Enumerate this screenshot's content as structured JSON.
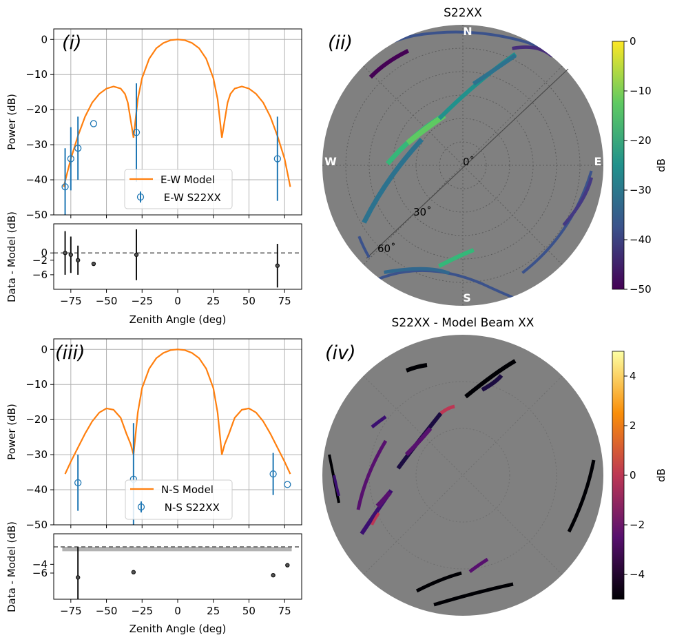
{
  "panels": {
    "i": {
      "tag": "(i)"
    },
    "ii": {
      "tag": "(ii)",
      "title": "S22XX"
    },
    "iii": {
      "tag": "(iii)"
    },
    "iv": {
      "tag": "(iv)",
      "title": "S22XX - Model Beam XX"
    }
  },
  "chart_data": [
    {
      "id": "ew-power",
      "type": "line",
      "xlabel": "",
      "ylabel": "Power (dB)",
      "xlim": [
        -87,
        87
      ],
      "ylim": [
        -50,
        3
      ],
      "yticks": [
        0,
        -10,
        -20,
        -30,
        -40,
        -50
      ],
      "xticks": [
        -75,
        -50,
        -25,
        0,
        25,
        50,
        75
      ],
      "grid": true,
      "legend": "lower-center",
      "model_series": {
        "name": "E-W Model",
        "color": "#ff7f0e",
        "x": [
          -80,
          -75,
          -70,
          -65,
          -60,
          -55,
          -50,
          -45,
          -40,
          -37,
          -35,
          -33,
          -31,
          -28,
          -25,
          -20,
          -15,
          -10,
          -5,
          0,
          5,
          10,
          15,
          20,
          25,
          28,
          31,
          33,
          35,
          37,
          40,
          45,
          50,
          55,
          60,
          65,
          70,
          75,
          79
        ],
        "y": [
          -42,
          -34,
          -27.5,
          -22,
          -18,
          -15.5,
          -14,
          -13.4,
          -14,
          -15.5,
          -18,
          -23,
          -28,
          -17,
          -11,
          -5.5,
          -2.5,
          -1,
          -0.2,
          0,
          -0.2,
          -1,
          -2.5,
          -5.5,
          -11,
          -17,
          -28,
          -23,
          -18,
          -15.5,
          -14,
          -13.4,
          -14,
          -15.5,
          -18,
          -22,
          -27.5,
          -34,
          -42
        ]
      },
      "data_series": {
        "name": " E-W S22XX",
        "color": "#1f77b4",
        "points": [
          {
            "x": -79,
            "y": -42,
            "err": 11
          },
          {
            "x": -75,
            "y": -34,
            "err": 9
          },
          {
            "x": -70,
            "y": -31,
            "err": 9
          },
          {
            "x": -59,
            "y": -24,
            "err": 0
          },
          {
            "x": -29,
            "y": -26.5,
            "err": 14
          },
          {
            "x": 70,
            "y": -34,
            "err": 12
          }
        ]
      }
    },
    {
      "id": "ew-residual",
      "type": "scatter",
      "xlabel": "Zenith Angle (deg)",
      "ylabel": "Data - Model (dB)",
      "xlim": [
        -87,
        87
      ],
      "ylim": [
        -10,
        8
      ],
      "yticks": [
        0,
        -2,
        -6
      ],
      "xticks": [
        -75,
        -50,
        -25,
        0,
        25,
        50,
        75
      ],
      "grid": false,
      "zero_line": 0,
      "points": [
        {
          "x": -79,
          "y": 0,
          "err": 6
        },
        {
          "x": -75,
          "y": -0.5,
          "err": 5
        },
        {
          "x": -70,
          "y": -2,
          "err": 4
        },
        {
          "x": -59,
          "y": -3,
          "err": 0
        },
        {
          "x": -29,
          "y": -0.5,
          "err": 7
        },
        {
          "x": 70,
          "y": -3.5,
          "err": 6
        }
      ]
    },
    {
      "id": "ns-power",
      "type": "line",
      "xlabel": "",
      "ylabel": "Power (dB)",
      "xlim": [
        -87,
        87
      ],
      "ylim": [
        -50,
        3
      ],
      "yticks": [
        0,
        -10,
        -20,
        -30,
        -40,
        -50
      ],
      "xticks": [
        -75,
        -50,
        -25,
        0,
        25,
        50,
        75
      ],
      "grid": true,
      "legend": "lower-center",
      "model_series": {
        "name": "N-S Model",
        "color": "#ff7f0e",
        "x": [
          -79,
          -75,
          -70,
          -65,
          -60,
          -55,
          -50,
          -45,
          -40,
          -36,
          -33,
          -31,
          -28,
          -25,
          -20,
          -15,
          -10,
          -5,
          0,
          5,
          10,
          15,
          20,
          25,
          28,
          31,
          33,
          36,
          40,
          45,
          50,
          55,
          60,
          65,
          70,
          75,
          79
        ],
        "y": [
          -35.5,
          -32,
          -28,
          -24,
          -20.5,
          -18,
          -16.8,
          -17.2,
          -19.5,
          -24,
          -27,
          -30,
          -18,
          -11,
          -5.5,
          -2.5,
          -1,
          -0.2,
          0,
          -0.2,
          -1,
          -2.5,
          -5.5,
          -11,
          -18,
          -30,
          -27,
          -24,
          -19.5,
          -17.2,
          -16.8,
          -18,
          -20.5,
          -24,
          -28,
          -32,
          -35.5
        ]
      },
      "data_series": {
        "name": " N-S S22XX",
        "color": "#1f77b4",
        "points": [
          {
            "x": -70,
            "y": -38,
            "err": 8
          },
          {
            "x": -31,
            "y": -37,
            "err": 16
          },
          {
            "x": 67,
            "y": -35.5,
            "err": 6
          },
          {
            "x": 77,
            "y": -38.5,
            "err": 0
          }
        ]
      }
    },
    {
      "id": "ns-residual",
      "type": "scatter",
      "xlabel": "Zenith Angle (deg)",
      "ylabel": "Data - Model (dB)",
      "xlim": [
        -87,
        87
      ],
      "ylim": [
        -12,
        3
      ],
      "yticks": [
        -4,
        -6
      ],
      "xticks": [
        -75,
        -50,
        -25,
        0,
        25,
        50,
        75
      ],
      "grid": false,
      "zero_line": 0,
      "band": [
        -1,
        0
      ],
      "points": [
        {
          "x": -70,
          "y": -7,
          "err": 7
        },
        {
          "x": -31,
          "y": -5.8,
          "err": 0
        },
        {
          "x": 67,
          "y": -6.5,
          "err": 0
        },
        {
          "x": 77,
          "y": -4.2,
          "err": 0
        }
      ]
    },
    {
      "id": "sky-map",
      "type": "heatmap",
      "title": "S22XX",
      "colorbar_label": "dB",
      "clim": [
        -50,
        0
      ],
      "cticks": [
        0,
        -10,
        -20,
        -30,
        -40,
        -50
      ],
      "colormap": "viridis",
      "cardinals": [
        "N",
        "E",
        "S",
        "W"
      ],
      "rings": [
        "0$^\\circ$",
        "30$^\\circ$",
        "60$^\\circ$"
      ],
      "ring_labels": [
        "0˚",
        "30˚",
        "60˚"
      ]
    },
    {
      "id": "residual-map",
      "type": "heatmap",
      "title": "S22XX - Model Beam XX",
      "colorbar_label": "dB",
      "clim": [
        -5,
        5
      ],
      "cticks": [
        4,
        2,
        0,
        -2,
        -4
      ],
      "colormap": "inferno"
    }
  ]
}
